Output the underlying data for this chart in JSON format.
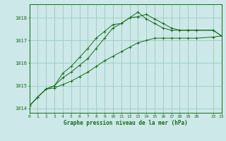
{
  "background_color": "#cce8e8",
  "grid_color": "#99ccbb",
  "line_color": "#1a6b1a",
  "title": "Graphe pression niveau de la mer (hPa)",
  "xlim": [
    0,
    23
  ],
  "ylim": [
    1013.8,
    1018.6
  ],
  "yticks": [
    1014,
    1015,
    1016,
    1017,
    1018
  ],
  "xticks": [
    0,
    1,
    2,
    3,
    4,
    5,
    6,
    7,
    8,
    9,
    10,
    11,
    12,
    13,
    14,
    15,
    16,
    17,
    18,
    19,
    20,
    22,
    23
  ],
  "xtick_labels": [
    "0",
    "1",
    "2",
    "3",
    "4",
    "5",
    "6",
    "7",
    "8",
    "9",
    "10",
    "11",
    "12",
    "13",
    "14",
    "15",
    "16",
    "17",
    "18",
    "19",
    "20",
    "22",
    "23"
  ],
  "line1_x": [
    0,
    1,
    2,
    3,
    4,
    5,
    6,
    7,
    8,
    9,
    10,
    11,
    12,
    13,
    14,
    15,
    16,
    17,
    18,
    19,
    20,
    22,
    23
  ],
  "line1_y": [
    1014.1,
    1014.5,
    1014.85,
    1014.9,
    1015.05,
    1015.2,
    1015.4,
    1015.6,
    1015.85,
    1016.1,
    1016.3,
    1016.5,
    1016.7,
    1016.9,
    1017.0,
    1017.1,
    1017.1,
    1017.1,
    1017.1,
    1017.1,
    1017.1,
    1017.15,
    1017.2
  ],
  "line2_x": [
    0,
    1,
    2,
    3,
    4,
    5,
    6,
    7,
    8,
    9,
    10,
    11,
    12,
    13,
    14,
    15,
    16,
    17,
    18,
    19,
    20,
    22,
    23
  ],
  "line2_y": [
    1014.1,
    1014.5,
    1014.85,
    1015.0,
    1015.55,
    1015.85,
    1016.25,
    1016.65,
    1017.1,
    1017.4,
    1017.7,
    1017.75,
    1018.0,
    1018.25,
    1017.95,
    1017.75,
    1017.55,
    1017.45,
    1017.45,
    1017.45,
    1017.45,
    1017.45,
    1017.2
  ],
  "line3_x": [
    0,
    1,
    2,
    3,
    4,
    5,
    6,
    7,
    8,
    9,
    10,
    11,
    12,
    13,
    14,
    15,
    16,
    17,
    18,
    19,
    20,
    22,
    23
  ],
  "line3_y": [
    1014.1,
    1014.5,
    1014.85,
    1015.0,
    1015.35,
    1015.6,
    1015.9,
    1016.2,
    1016.65,
    1017.1,
    1017.55,
    1017.75,
    1018.0,
    1018.05,
    1018.15,
    1017.95,
    1017.75,
    1017.55,
    1017.45,
    1017.45,
    1017.45,
    1017.45,
    1017.2
  ]
}
